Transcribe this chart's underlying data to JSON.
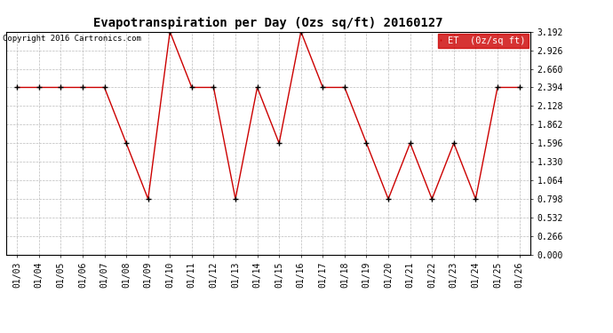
{
  "title": "Evapotranspiration per Day (Ozs sq/ft) 20160127",
  "copyright": "Copyright 2016 Cartronics.com",
  "x_labels": [
    "01/03",
    "01/04",
    "01/05",
    "01/06",
    "01/07",
    "01/08",
    "01/09",
    "01/10",
    "01/11",
    "01/12",
    "01/13",
    "01/14",
    "01/15",
    "01/16",
    "01/17",
    "01/18",
    "01/19",
    "01/20",
    "01/21",
    "01/22",
    "01/23",
    "01/24",
    "01/25",
    "01/26"
  ],
  "y_values": [
    2.394,
    2.394,
    2.394,
    2.394,
    2.394,
    1.596,
    0.798,
    3.192,
    2.394,
    2.394,
    0.798,
    2.394,
    1.596,
    3.192,
    2.394,
    2.394,
    1.596,
    0.798,
    1.596,
    0.798,
    1.596,
    0.798,
    2.394,
    2.394
  ],
  "ylim": [
    0.0,
    3.192
  ],
  "yticks": [
    0.0,
    0.266,
    0.532,
    0.798,
    1.064,
    1.33,
    1.596,
    1.862,
    2.128,
    2.394,
    2.66,
    2.926,
    3.192
  ],
  "line_color": "#cc0000",
  "marker_color": "#000000",
  "bg_color": "#ffffff",
  "grid_color": "#bbbbbb",
  "legend_bg": "#cc0000",
  "legend_text_color": "#ffffff",
  "title_fontsize": 10,
  "copyright_fontsize": 6.5,
  "tick_fontsize": 7,
  "legend_fontsize": 7.5
}
